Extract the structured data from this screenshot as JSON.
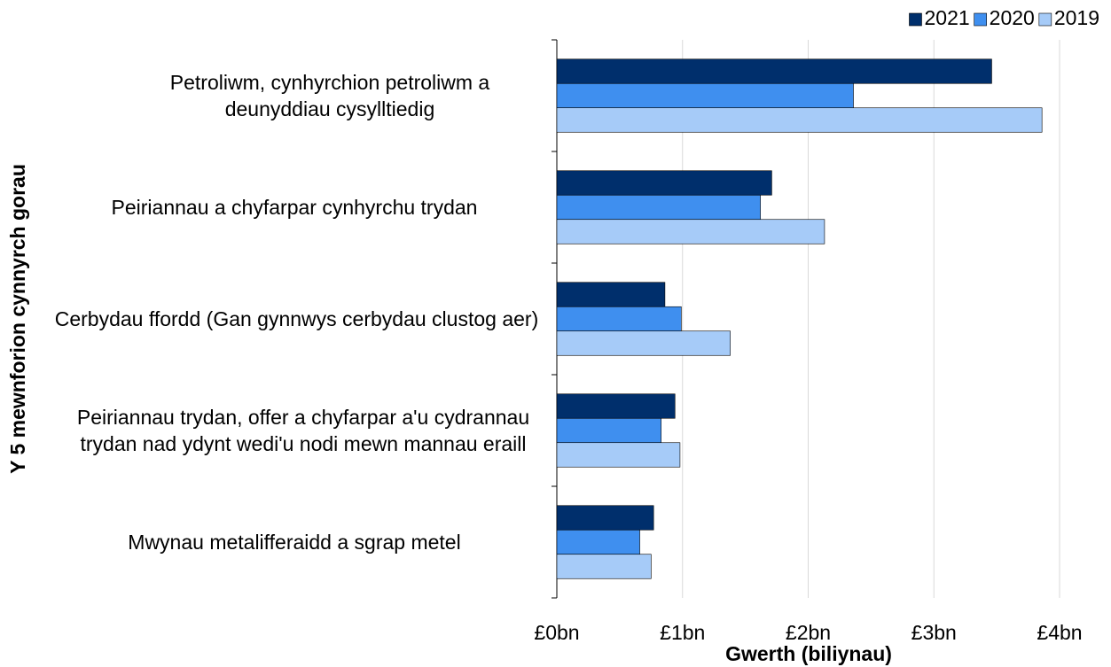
{
  "chart_data": {
    "type": "bar",
    "orientation": "horizontal",
    "y_axis_title": "Y 5 mewnforion cynnyrch gorau",
    "x_axis_title": "Gwerth (biliynau)",
    "categories": [
      "Petroliwm, cynhyrchion petroliwm a deunyddiau cysylltiedig",
      "Peiriannau a chyfarpar cynhyrchu trydan",
      "Cerbydau ffordd (Gan gynnwys cerbydau clustog aer)",
      "Peiriannau trydan, offer a chyfarpar a'u cydrannau trydan nad ydynt wedi'u nodi mewn mannau eraill",
      "Mwynau metalifferaidd a sgrap metel"
    ],
    "series": [
      {
        "name": "2021",
        "color": "#002f6c",
        "values": [
          3.46,
          1.71,
          0.86,
          0.94,
          0.77
        ]
      },
      {
        "name": "2020",
        "color": "#3f8fef",
        "values": [
          2.36,
          1.62,
          0.99,
          0.83,
          0.66
        ]
      },
      {
        "name": "2019",
        "color": "#a6cbf8",
        "values": [
          3.86,
          2.13,
          1.38,
          0.98,
          0.75
        ]
      }
    ],
    "xlim": [
      0,
      4
    ],
    "xticks": [
      {
        "value": 0,
        "label": "£0bn"
      },
      {
        "value": 1,
        "label": "£1bn"
      },
      {
        "value": 2,
        "label": "£2bn"
      },
      {
        "value": 3,
        "label": "£3bn"
      },
      {
        "value": 4,
        "label": "£4bn"
      }
    ],
    "grid": true,
    "legend": "top-right"
  }
}
